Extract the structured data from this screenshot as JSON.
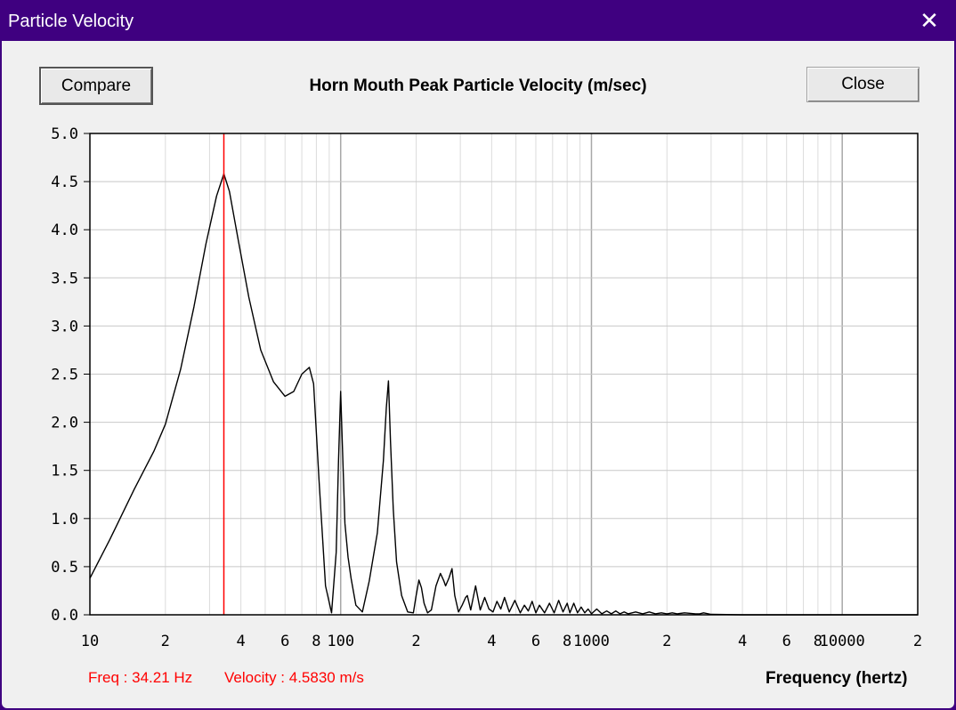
{
  "window": {
    "title": "Particle Velocity",
    "close_glyph": "✕"
  },
  "buttons": {
    "compare_label": "Compare",
    "close_label": "Close"
  },
  "readout": {
    "freq": "Freq : 34.21 Hz",
    "velocity": "Velocity : 4.5830 m/s"
  },
  "colors": {
    "trace": "#000000",
    "cursor": "#ff0000",
    "grid": "#c8c8c8",
    "titlebar": "#3f0080"
  },
  "chart_data": {
    "type": "line",
    "title": "Horn Mouth Peak Particle Velocity (m/sec)",
    "xlabel": "Frequency (hertz)",
    "ylabel": "",
    "x_scale": "log",
    "xlim": [
      10,
      20000
    ],
    "ylim": [
      0,
      5
    ],
    "grid": true,
    "y_ticks": [
      "0.0",
      "0.5",
      "1.0",
      "1.5",
      "2.0",
      "2.5",
      "3.0",
      "3.5",
      "4.0",
      "4.5",
      "5.0"
    ],
    "x_ticks": [
      {
        "value": 10,
        "label": "10"
      },
      {
        "value": 20,
        "label": "2"
      },
      {
        "value": 40,
        "label": "4"
      },
      {
        "value": 60,
        "label": "6"
      },
      {
        "value": 80,
        "label": "8"
      },
      {
        "value": 100,
        "label": "100"
      },
      {
        "value": 200,
        "label": "2"
      },
      {
        "value": 400,
        "label": "4"
      },
      {
        "value": 600,
        "label": "6"
      },
      {
        "value": 800,
        "label": "8"
      },
      {
        "value": 1000,
        "label": "1000"
      },
      {
        "value": 2000,
        "label": "2"
      },
      {
        "value": 4000,
        "label": "4"
      },
      {
        "value": 6000,
        "label": "6"
      },
      {
        "value": 8000,
        "label": "8"
      },
      {
        "value": 10000,
        "label": "10000"
      },
      {
        "value": 20000,
        "label": "2"
      }
    ],
    "cursor_x": 34.21,
    "series": [
      {
        "x": [
          10,
          12,
          15,
          18,
          20,
          23,
          26,
          29,
          32,
          34.21,
          36,
          39,
          43,
          48,
          54,
          60,
          65,
          70,
          75,
          78,
          82,
          87,
          92,
          96,
          98,
          100,
          102,
          104,
          107,
          110,
          115,
          122,
          130,
          140,
          148,
          152,
          155,
          158,
          162,
          167,
          175,
          185,
          195,
          200,
          205,
          210,
          215,
          222,
          230,
          240,
          250,
          258,
          262,
          270,
          278,
          285,
          295,
          305,
          315,
          320,
          330,
          345,
          360,
          375,
          390,
          405,
          420,
          435,
          450,
          470,
          495,
          520,
          540,
          560,
          580,
          600,
          620,
          650,
          680,
          710,
          740,
          770,
          800,
          820,
          850,
          880,
          910,
          940,
          970,
          1000,
          1050,
          1100,
          1150,
          1200,
          1250,
          1300,
          1350,
          1400,
          1500,
          1600,
          1700,
          1800,
          1900,
          2000,
          2100,
          2200,
          2350,
          2600,
          2700,
          2800,
          3000,
          4000,
          8000,
          20000
        ],
        "y": [
          0.38,
          0.78,
          1.3,
          1.7,
          1.98,
          2.55,
          3.2,
          3.85,
          4.35,
          4.58,
          4.4,
          3.9,
          3.3,
          2.75,
          2.42,
          2.27,
          2.32,
          2.5,
          2.57,
          2.4,
          1.4,
          0.3,
          0.02,
          0.65,
          1.6,
          2.32,
          1.6,
          0.95,
          0.6,
          0.38,
          0.1,
          0.03,
          0.35,
          0.85,
          1.6,
          2.15,
          2.43,
          1.8,
          1.1,
          0.55,
          0.2,
          0.03,
          0.02,
          0.2,
          0.36,
          0.28,
          0.12,
          0.02,
          0.05,
          0.3,
          0.43,
          0.35,
          0.3,
          0.38,
          0.48,
          0.2,
          0.03,
          0.1,
          0.18,
          0.2,
          0.05,
          0.3,
          0.05,
          0.18,
          0.06,
          0.03,
          0.14,
          0.06,
          0.18,
          0.03,
          0.15,
          0.02,
          0.1,
          0.04,
          0.14,
          0.02,
          0.1,
          0.02,
          0.12,
          0.02,
          0.15,
          0.03,
          0.12,
          0.02,
          0.12,
          0.02,
          0.08,
          0.02,
          0.06,
          0.01,
          0.06,
          0.01,
          0.04,
          0.01,
          0.04,
          0.01,
          0.03,
          0.01,
          0.03,
          0.01,
          0.03,
          0.01,
          0.02,
          0.01,
          0.02,
          0.01,
          0.02,
          0.01,
          0.01,
          0.02,
          0.005,
          0,
          0,
          0
        ]
      }
    ]
  }
}
